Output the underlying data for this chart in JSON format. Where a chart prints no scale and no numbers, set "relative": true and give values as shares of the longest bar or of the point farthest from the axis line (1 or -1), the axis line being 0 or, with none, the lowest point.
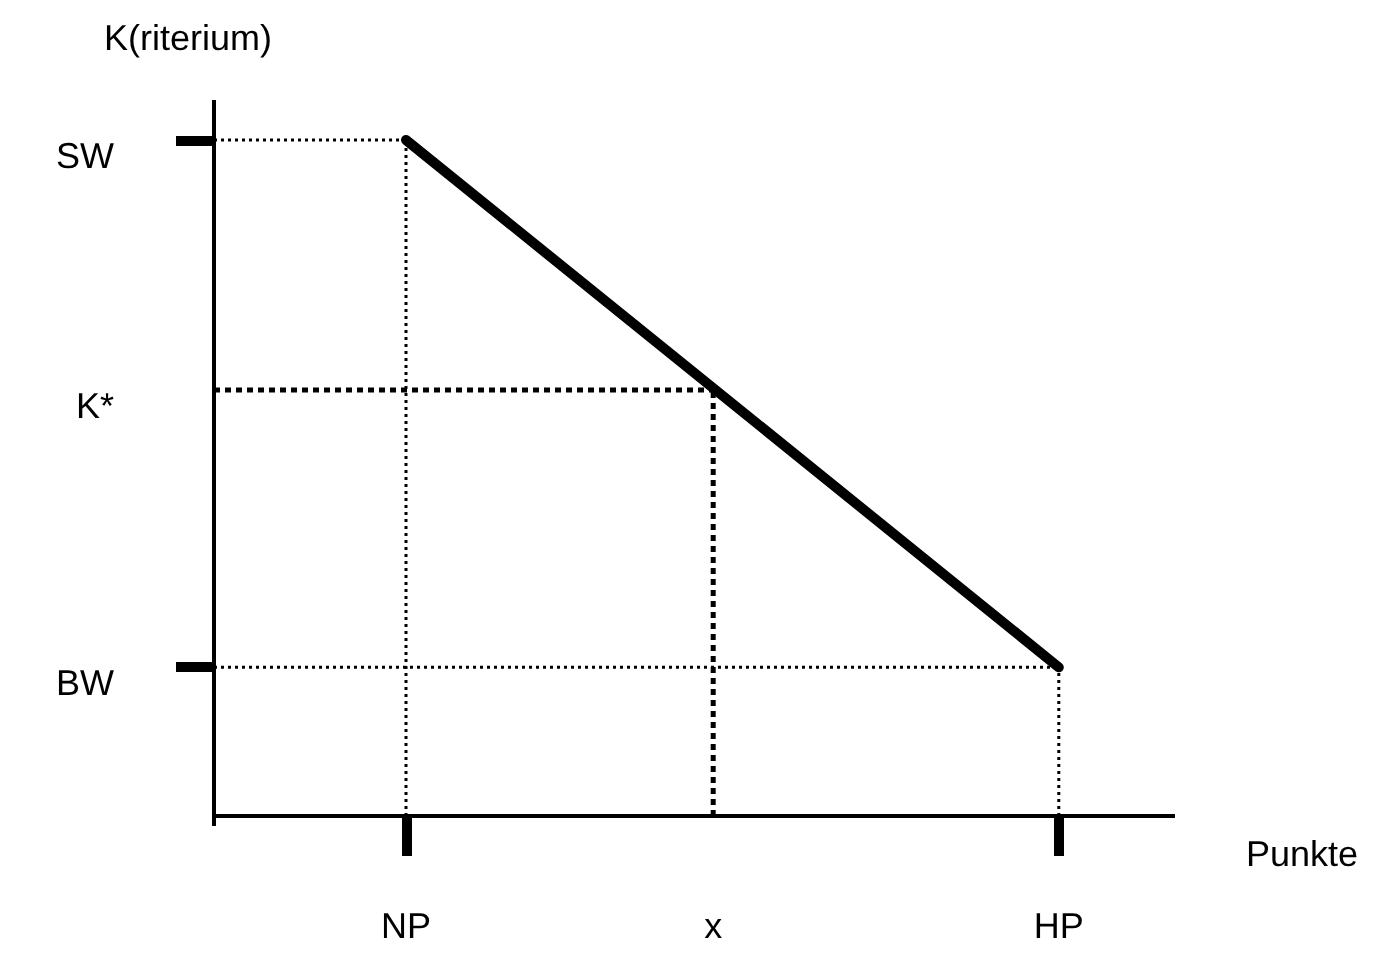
{
  "chart_data": {
    "type": "line",
    "relative": true,
    "xlabel": "Punkte",
    "ylabel": "K(riterium)",
    "categories": [
      null,
      null,
      null,
      null,
      null,
      "NP",
      null,
      null,
      null,
      null,
      null,
      null,
      null,
      "x",
      null,
      null,
      null,
      null,
      null,
      null,
      null,
      null,
      "HP",
      null,
      null,
      null
    ],
    "series": [
      {
        "color": "#000000",
        "x": [
          "NP",
          "HP"
        ],
        "values": [
          1,
          0.22
        ]
      }
    ],
    "ref_lines": [
      {
        "axis": "y",
        "value": 1,
        "label": "SW",
        "color": "#000000",
        "line_style": "dotted"
      },
      {
        "axis": "y",
        "value": 0.63,
        "label": "K*",
        "color": "#000000",
        "line_style": "dashed"
      },
      {
        "axis": "y",
        "value": 0.22,
        "label": "BW",
        "color": "#000000",
        "line_style": "dotted"
      },
      {
        "axis": "x",
        "value": "NP",
        "color": "#000000",
        "line_style": "dotted"
      },
      {
        "axis": "x",
        "value": "x",
        "color": "#000000",
        "line_style": "dashed"
      },
      {
        "axis": "x",
        "value": "HP",
        "color": "#000000",
        "line_style": "dotted"
      }
    ],
    "grid": false,
    "legend": false
  }
}
